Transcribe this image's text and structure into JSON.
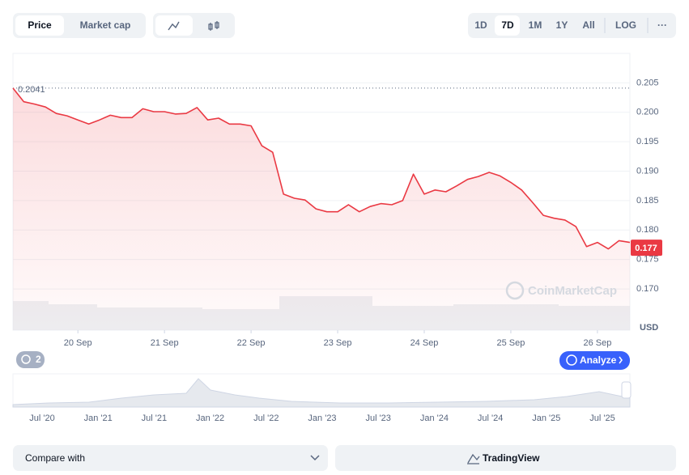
{
  "toolbar": {
    "tabs": [
      "Price",
      "Market cap"
    ],
    "ranges": [
      "1D",
      "7D",
      "1M",
      "1Y",
      "All",
      "LOG"
    ],
    "more": "···"
  },
  "chart_data": {
    "type": "line",
    "color": "#ea3943",
    "grid": true,
    "categories": [
      null,
      null,
      null,
      null,
      null,
      null,
      "20 Sep",
      null,
      null,
      null,
      null,
      null,
      null,
      null,
      "21 Sep",
      null,
      null,
      null,
      null,
      null,
      null,
      null,
      "22 Sep",
      null,
      null,
      null,
      null,
      null,
      null,
      null,
      "23 Sep",
      null,
      null,
      null,
      null,
      null,
      null,
      null,
      "24 Sep",
      null,
      null,
      null,
      null,
      null,
      null,
      null,
      "25 Sep",
      null,
      null,
      null,
      null,
      null,
      null,
      null,
      "26 Sep",
      null,
      null,
      null
    ],
    "values": [
      0.2041,
      0.2018,
      0.2014,
      0.2009,
      0.1998,
      0.1994,
      0.1987,
      0.198,
      0.1987,
      0.1995,
      0.1991,
      0.1991,
      0.2006,
      0.2001,
      0.2001,
      0.1997,
      0.1998,
      0.2008,
      0.1987,
      0.199,
      0.198,
      0.198,
      0.1977,
      0.1943,
      0.1932,
      0.1861,
      0.1854,
      0.1851,
      0.1836,
      0.1831,
      0.1831,
      0.1843,
      0.1831,
      0.184,
      0.1845,
      0.1843,
      0.185,
      0.1895,
      0.1861,
      0.1868,
      0.1865,
      0.1875,
      0.1886,
      0.1891,
      0.1898,
      0.1892,
      0.1881,
      0.1868,
      0.1847,
      0.1825,
      0.182,
      0.1817,
      0.1806,
      0.1772,
      0.1779,
      0.1768,
      0.1782,
      0.1779
    ],
    "ylim": [
      0.163,
      0.21
    ],
    "yticks": [
      {
        "value": 0.17,
        "label": "0.170"
      },
      0.175,
      {
        "value": 0.18,
        "label": "0.180"
      },
      0.185,
      {
        "value": 0.19,
        "label": "0.190"
      },
      0.195,
      {
        "value": 0.2,
        "label": "0.200"
      },
      0.205
    ],
    "reference": 0.2041,
    "current_price": 0.177,
    "currency": "USD",
    "watermark": "CoinMarketCap"
  },
  "badge": "2",
  "analyze": "Analyze",
  "navigator": {
    "labels": [
      "Jul '20",
      "Jan '21",
      "Jul '21",
      "Jan '22",
      "Jul '22",
      "Jan '23",
      "Jul '23",
      "Jan '24",
      "Jul '24",
      "Jan '25",
      "Jul '25"
    ]
  },
  "footer": {
    "compare": "Compare with",
    "tradingview": "TradingView"
  }
}
